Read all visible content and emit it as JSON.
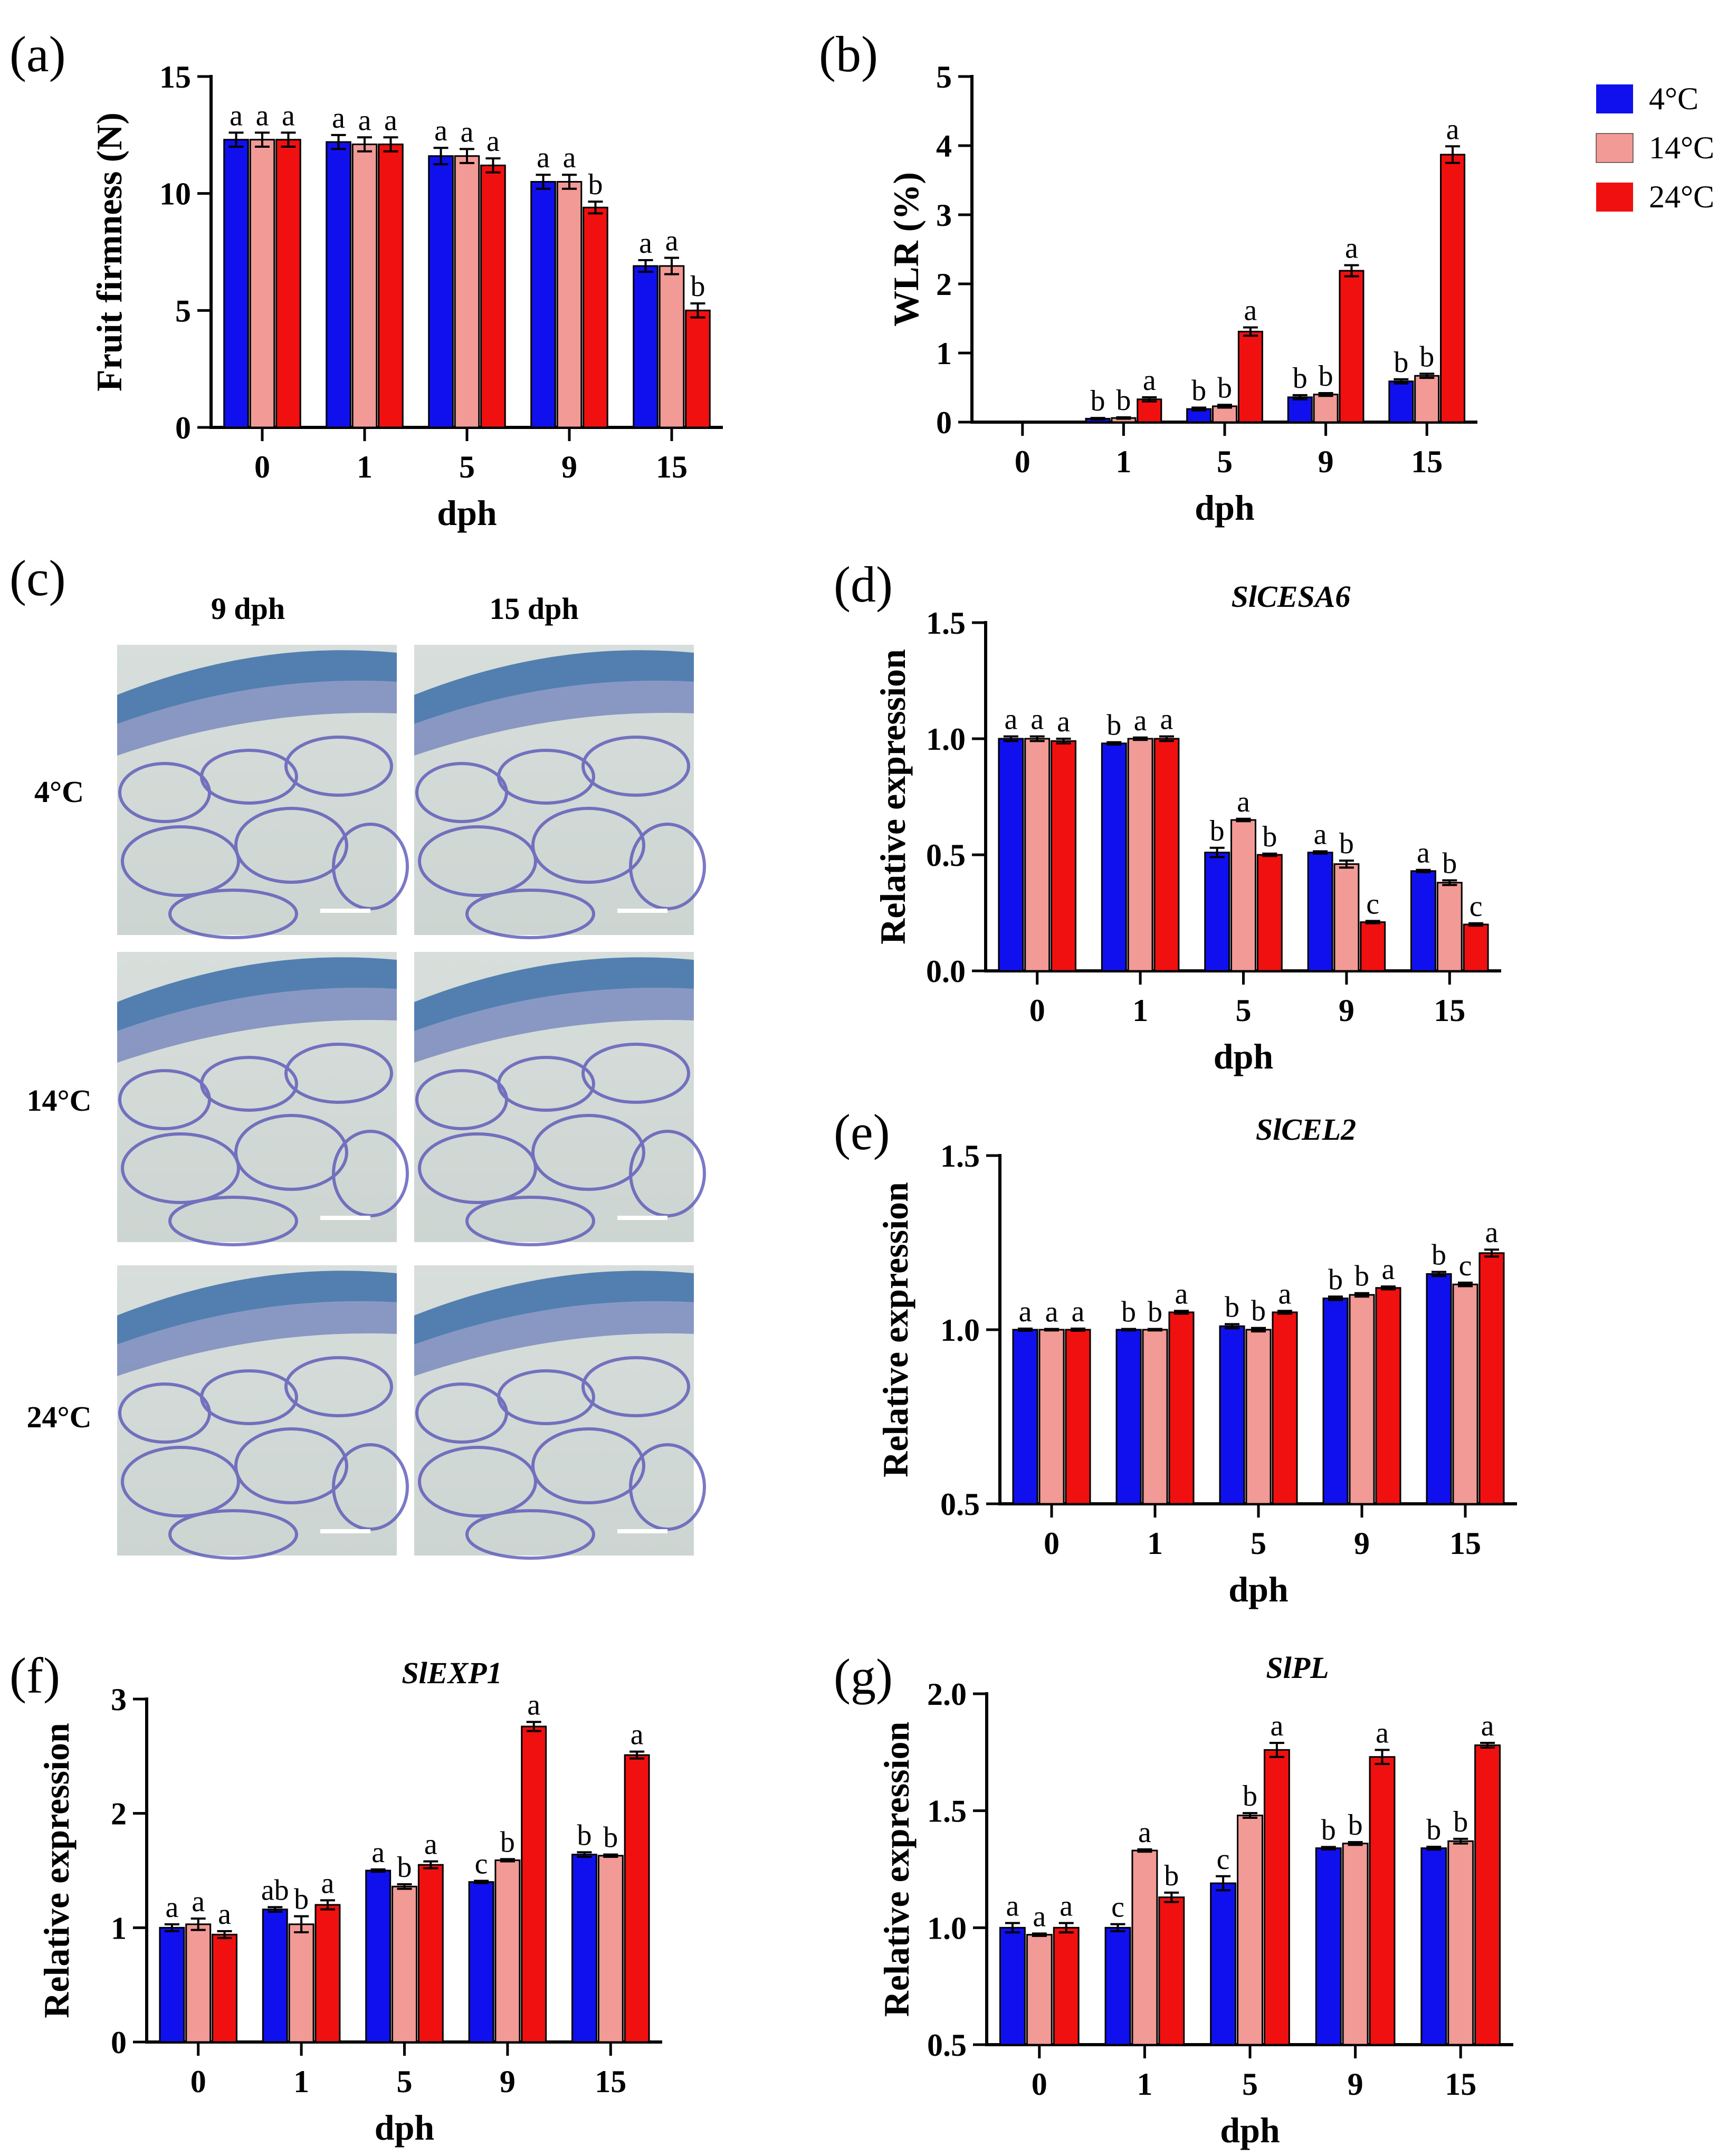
{
  "colors": {
    "c4": "#1010ee",
    "c14": "#f29a96",
    "c24": "#f01010"
  },
  "legend": {
    "items": [
      {
        "label": "4°C",
        "color": "#1010ee"
      },
      {
        "label": "14°C",
        "color": "#f29a96"
      },
      {
        "label": "24°C",
        "color": "#f01010"
      }
    ]
  },
  "panel_c": {
    "label": "(c)",
    "columns": [
      "9 dph",
      "15 dph"
    ],
    "rows": [
      "4°C",
      "14°C",
      "24°C"
    ]
  },
  "chart_data": [
    {
      "id": "a",
      "panel_label": "(a)",
      "type": "bar",
      "title": "",
      "ylabel": "Fruit firmness (N)",
      "xlabel": "dph",
      "categories": [
        "0",
        "1",
        "5",
        "9",
        "15"
      ],
      "ylim": [
        0,
        15
      ],
      "yticks": [
        0,
        5,
        10,
        15
      ],
      "ytick_labels": [
        "0",
        "5",
        "10",
        "15"
      ],
      "series": [
        {
          "name": "4°C",
          "values": [
            12.3,
            12.2,
            11.6,
            10.5,
            6.9
          ],
          "errors": [
            0.3,
            0.3,
            0.35,
            0.3,
            0.25
          ],
          "sig": [
            "a",
            "a",
            "a",
            "a",
            "a"
          ]
        },
        {
          "name": "14°C",
          "values": [
            12.3,
            12.1,
            11.6,
            10.5,
            6.9
          ],
          "errors": [
            0.3,
            0.3,
            0.3,
            0.3,
            0.35
          ],
          "sig": [
            "a",
            "a",
            "a",
            "a",
            "a"
          ]
        },
        {
          "name": "24°C",
          "values": [
            12.3,
            12.1,
            11.2,
            9.4,
            5.0
          ],
          "errors": [
            0.3,
            0.3,
            0.3,
            0.25,
            0.3
          ],
          "sig": [
            "a",
            "a",
            "a",
            "b",
            "b"
          ]
        }
      ]
    },
    {
      "id": "b",
      "panel_label": "(b)",
      "type": "bar",
      "title": "",
      "ylabel": "WLR (%)",
      "xlabel": "dph",
      "categories": [
        "0",
        "1",
        "5",
        "9",
        "15"
      ],
      "ylim": [
        0,
        5
      ],
      "yticks": [
        0,
        1,
        2,
        3,
        4,
        5
      ],
      "ytick_labels": [
        "0",
        "1",
        "2",
        "3",
        "4",
        "5"
      ],
      "series": [
        {
          "name": "4°C",
          "values": [
            0,
            0.05,
            0.19,
            0.36,
            0.59
          ],
          "errors": [
            0,
            0.01,
            0.02,
            0.03,
            0.03
          ],
          "sig": [
            "",
            "b",
            "b",
            "b",
            "b"
          ]
        },
        {
          "name": "14°C",
          "values": [
            0,
            0.06,
            0.23,
            0.4,
            0.67
          ],
          "errors": [
            0,
            0.01,
            0.02,
            0.02,
            0.03
          ],
          "sig": [
            "",
            "b",
            "b",
            "b",
            "b"
          ]
        },
        {
          "name": "24°C",
          "values": [
            0,
            0.33,
            1.31,
            2.19,
            3.87
          ],
          "errors": [
            0,
            0.03,
            0.06,
            0.08,
            0.12
          ],
          "sig": [
            "",
            "a",
            "a",
            "a",
            "a"
          ]
        }
      ]
    },
    {
      "id": "d",
      "panel_label": "(d)",
      "type": "bar",
      "title": "SlCESA6",
      "ylabel": "Relative expression",
      "xlabel": "dph",
      "categories": [
        "0",
        "1",
        "5",
        "9",
        "15"
      ],
      "ylim": [
        0,
        1.5
      ],
      "yticks": [
        0,
        0.5,
        1.0,
        1.5
      ],
      "ytick_labels": [
        "0.0",
        "0.5",
        "1.0",
        "1.5"
      ],
      "series": [
        {
          "name": "4°C",
          "values": [
            1.0,
            0.98,
            0.51,
            0.51,
            0.43
          ],
          "errors": [
            0.01,
            0.005,
            0.02,
            0.005,
            0.005
          ],
          "sig": [
            "a",
            "b",
            "b",
            "a",
            "a"
          ]
        },
        {
          "name": "14°C",
          "values": [
            1.0,
            1.0,
            0.65,
            0.46,
            0.38
          ],
          "errors": [
            0.01,
            0.005,
            0.005,
            0.015,
            0.01
          ],
          "sig": [
            "a",
            "a",
            "a",
            "b",
            "b"
          ]
        },
        {
          "name": "24°C",
          "values": [
            0.99,
            1.0,
            0.5,
            0.21,
            0.2
          ],
          "errors": [
            0.01,
            0.01,
            0.005,
            0.005,
            0.005
          ],
          "sig": [
            "a",
            "a",
            "b",
            "c",
            "c"
          ]
        }
      ]
    },
    {
      "id": "e",
      "panel_label": "(e)",
      "type": "bar",
      "title": "SlCEL2",
      "ylabel": "Relative expression",
      "xlabel": "dph",
      "categories": [
        "0",
        "1",
        "5",
        "9",
        "15"
      ],
      "ylim": [
        0.5,
        1.5
      ],
      "yticks": [
        0.5,
        1.0,
        1.5
      ],
      "ytick_labels": [
        "0.5",
        "1.0",
        "1.5"
      ],
      "series": [
        {
          "name": "4°C",
          "values": [
            1.0,
            1.0,
            1.01,
            1.09,
            1.16
          ],
          "errors": [
            0.003,
            0.002,
            0.006,
            0.005,
            0.006
          ],
          "sig": [
            "a",
            "b",
            "b",
            "b",
            "b"
          ]
        },
        {
          "name": "14°C",
          "values": [
            1.0,
            1.0,
            1.0,
            1.1,
            1.13
          ],
          "errors": [
            0.002,
            0.002,
            0.005,
            0.005,
            0.005
          ],
          "sig": [
            "a",
            "b",
            "b",
            "b",
            "c"
          ]
        },
        {
          "name": "24°C",
          "values": [
            1.0,
            1.05,
            1.05,
            1.12,
            1.22
          ],
          "errors": [
            0.003,
            0.004,
            0.004,
            0.004,
            0.01
          ],
          "sig": [
            "a",
            "a",
            "a",
            "a",
            "a"
          ]
        }
      ]
    },
    {
      "id": "f",
      "panel_label": "(f)",
      "type": "bar",
      "title": "SlEXP1",
      "ylabel": "Relative expression",
      "xlabel": "dph",
      "categories": [
        "0",
        "1",
        "5",
        "9",
        "15"
      ],
      "ylim": [
        0,
        3
      ],
      "yticks": [
        0,
        1,
        2,
        3
      ],
      "ytick_labels": [
        "0",
        "1",
        "2",
        "3"
      ],
      "series": [
        {
          "name": "4°C",
          "values": [
            1.0,
            1.16,
            1.5,
            1.4,
            1.64
          ],
          "errors": [
            0.03,
            0.02,
            0.01,
            0.01,
            0.02
          ],
          "sig": [
            "a",
            "ab",
            "a",
            "c",
            "b"
          ]
        },
        {
          "name": "14°C",
          "values": [
            1.03,
            1.03,
            1.36,
            1.59,
            1.63
          ],
          "errors": [
            0.05,
            0.07,
            0.02,
            0.01,
            0.01
          ],
          "sig": [
            "a",
            "b",
            "b",
            "b",
            "b"
          ]
        },
        {
          "name": "24°C",
          "values": [
            0.94,
            1.2,
            1.55,
            2.76,
            2.51
          ],
          "errors": [
            0.03,
            0.04,
            0.03,
            0.04,
            0.03
          ],
          "sig": [
            "a",
            "a",
            "a",
            "a",
            "a"
          ]
        }
      ]
    },
    {
      "id": "g",
      "panel_label": "(g)",
      "type": "bar",
      "title": "SlPL",
      "ylabel": "Relative expression",
      "xlabel": "dph",
      "categories": [
        "0",
        "1",
        "5",
        "9",
        "15"
      ],
      "ylim": [
        0.5,
        2.0
      ],
      "yticks": [
        0.5,
        1.0,
        1.5,
        2.0
      ],
      "ytick_labels": [
        "0.5",
        "1.0",
        "1.5",
        "2.0"
      ],
      "series": [
        {
          "name": "4°C",
          "values": [
            1.0,
            1.0,
            1.19,
            1.34,
            1.34
          ],
          "errors": [
            0.02,
            0.015,
            0.03,
            0.005,
            0.006
          ],
          "sig": [
            "a",
            "c",
            "c",
            "b",
            "b"
          ]
        },
        {
          "name": "14°C",
          "values": [
            0.97,
            1.33,
            1.48,
            1.36,
            1.37
          ],
          "errors": [
            0.005,
            0.005,
            0.01,
            0.006,
            0.01
          ],
          "sig": [
            "a",
            "a",
            "b",
            "b",
            "b"
          ]
        },
        {
          "name": "24°C",
          "values": [
            1.0,
            1.13,
            1.76,
            1.73,
            1.78
          ],
          "errors": [
            0.02,
            0.02,
            0.03,
            0.03,
            0.01
          ],
          "sig": [
            "a",
            "b",
            "a",
            "a",
            "a"
          ]
        }
      ]
    }
  ]
}
